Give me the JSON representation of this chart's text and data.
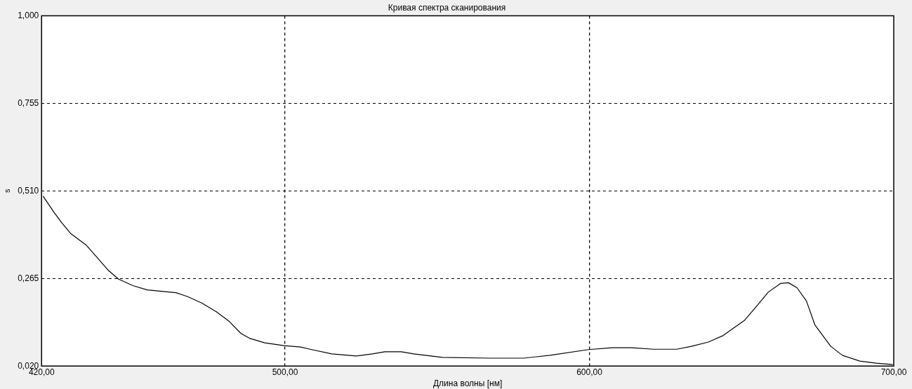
{
  "chart_data": {
    "type": "line",
    "title": "Кривая спектра сканирования",
    "xlabel": "Длина волны [нм]",
    "ylabel": "s",
    "xlim": [
      420,
      700
    ],
    "xticks": [
      {
        "value": 420,
        "label": "420,00"
      },
      {
        "value": 500,
        "label": "500,00"
      },
      {
        "value": 600,
        "label": "600,00"
      },
      {
        "value": 700,
        "label": "700,00"
      }
    ],
    "ylim": [
      0.02,
      1
    ],
    "yticks": [
      {
        "value": 0.02,
        "label": "0,020"
      },
      {
        "value": 0.265,
        "label": "0,265"
      },
      {
        "value": 0.51,
        "label": "0,510"
      },
      {
        "value": 0.755,
        "label": "0,755"
      },
      {
        "value": 1,
        "label": "1,000"
      }
    ],
    "grid": true,
    "legend": false,
    "marker": "none",
    "line_style": "solid",
    "series": [
      {
        "color": "#000000",
        "x": [
          420.5,
          424,
          426.6,
          429.5,
          434.7,
          438.2,
          442,
          445.3,
          450,
          454.7,
          459.5,
          464.2,
          468,
          472.7,
          477.4,
          481.5,
          485.5,
          488.5,
          493.3,
          499.7,
          505.1,
          508.2,
          515.3,
          523.3,
          528.7,
          532.8,
          538.2,
          542.2,
          551.7,
          567.3,
          578.4,
          587.1,
          599.7,
          607.5,
          613.9,
          621,
          628.7,
          633.5,
          639.1,
          643.9,
          651,
          654.8,
          658.8,
          662.8,
          665.4,
          668.2,
          671.3,
          674.1,
          679.3,
          683.1,
          688.8,
          694.2,
          699.7
        ],
        "values": [
          0.495,
          0.451,
          0.421,
          0.391,
          0.358,
          0.324,
          0.287,
          0.263,
          0.245,
          0.233,
          0.229,
          0.225,
          0.214,
          0.196,
          0.172,
          0.146,
          0.111,
          0.097,
          0.085,
          0.077,
          0.073,
          0.067,
          0.054,
          0.048,
          0.054,
          0.06,
          0.06,
          0.054,
          0.044,
          0.042,
          0.042,
          0.05,
          0.066,
          0.071,
          0.071,
          0.067,
          0.067,
          0.075,
          0.087,
          0.105,
          0.148,
          0.186,
          0.227,
          0.251,
          0.253,
          0.239,
          0.202,
          0.135,
          0.075,
          0.05,
          0.034,
          0.028,
          0.024
        ]
      }
    ]
  }
}
